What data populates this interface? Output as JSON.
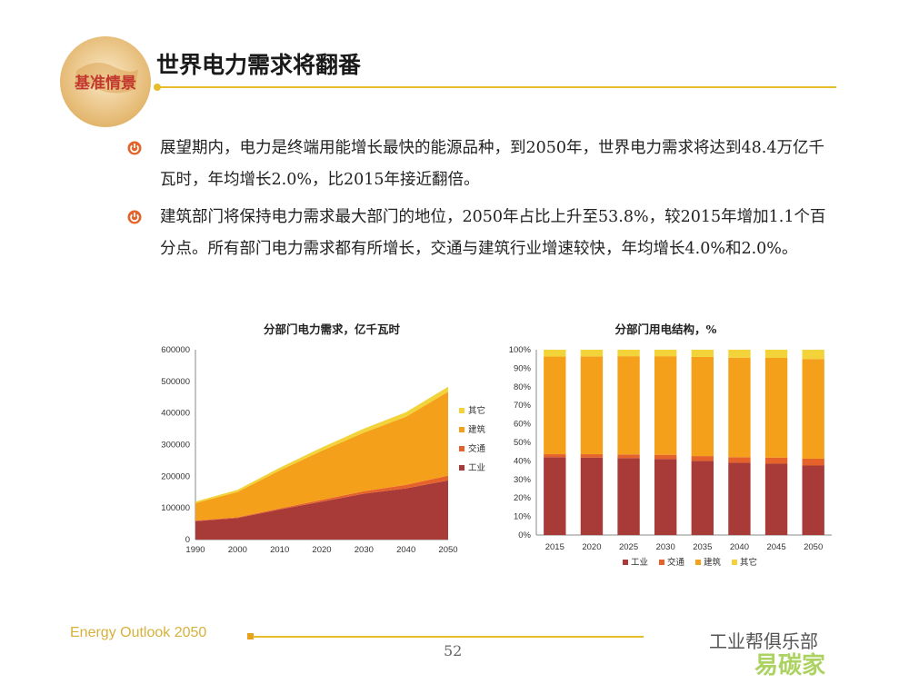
{
  "badge": {
    "text": "基准情景"
  },
  "title": "世界电力需求将翻番",
  "bullets": [
    {
      "text": "展望期内，电力是终端用能增长最快的能源品种，到2050年，世界电力需求将达到48.4万亿千瓦时，年均增长2.0%，比2015年接近翻倍。"
    },
    {
      "text": "建筑部门将保持电力需求最大部门的地位，2050年占比上升至53.8%，较2015年增加1.1个百分点。所有部门电力需求都有所增长，交通与建筑行业增速较快，年均增长4.0%和2.0%。"
    }
  ],
  "colors": {
    "industry": "#a83a37",
    "transport": "#e5632b",
    "building": "#f5a01a",
    "other": "#f2d43a",
    "accent": "#e6bd2b"
  },
  "chart_data": [
    {
      "type": "area",
      "title": "分部门电力需求，亿千瓦时",
      "x": [
        1990,
        2000,
        2010,
        2020,
        2030,
        2040,
        2050
      ],
      "ylim": [
        0,
        600000
      ],
      "yticks": [
        "0",
        "100000",
        "200000",
        "300000",
        "400000",
        "500000",
        "600000"
      ],
      "stacked": true,
      "legend_position": "right",
      "series": [
        {
          "name": "工业",
          "values": [
            58000,
            68000,
            95000,
            120000,
            145000,
            162000,
            187000
          ]
        },
        {
          "name": "交通",
          "values": [
            2000,
            2500,
            3500,
            5500,
            8000,
            11000,
            15000
          ]
        },
        {
          "name": "建筑",
          "values": [
            55000,
            80000,
            120000,
            155000,
            185000,
            215000,
            265000
          ]
        },
        {
          "name": "其它",
          "values": [
            5000,
            6500,
            8500,
            10500,
            12500,
            14500,
            16000
          ]
        }
      ]
    },
    {
      "type": "bar",
      "stacked": true,
      "title": "分部门用电结构，%",
      "categories": [
        "2015",
        "2020",
        "2025",
        "2030",
        "2035",
        "2040",
        "2045",
        "2050"
      ],
      "ylim": [
        0,
        100
      ],
      "yticks": [
        "0%",
        "10%",
        "20%",
        "30%",
        "40%",
        "50%",
        "60%",
        "70%",
        "80%",
        "90%",
        "100%"
      ],
      "legend_position": "bottom",
      "series": [
        {
          "name": "工业",
          "values": [
            42,
            41.8,
            41.5,
            41,
            40,
            39,
            38.5,
            37.5
          ]
        },
        {
          "name": "交通",
          "values": [
            1.6,
            1.8,
            2.0,
            2.3,
            2.6,
            3.0,
            3.3,
            3.7
          ]
        },
        {
          "name": "建筑",
          "values": [
            52.7,
            52.8,
            53.0,
            53.2,
            53.5,
            53.7,
            53.8,
            53.8
          ]
        },
        {
          "name": "其它",
          "values": [
            3.7,
            3.6,
            3.5,
            3.5,
            3.9,
            4.3,
            4.4,
            5.0
          ]
        }
      ]
    }
  ],
  "footer": {
    "brand": "Energy Outlook 2050",
    "page": "52",
    "watermark": "工业帮俱乐部",
    "watermark_site": "易碳家"
  }
}
